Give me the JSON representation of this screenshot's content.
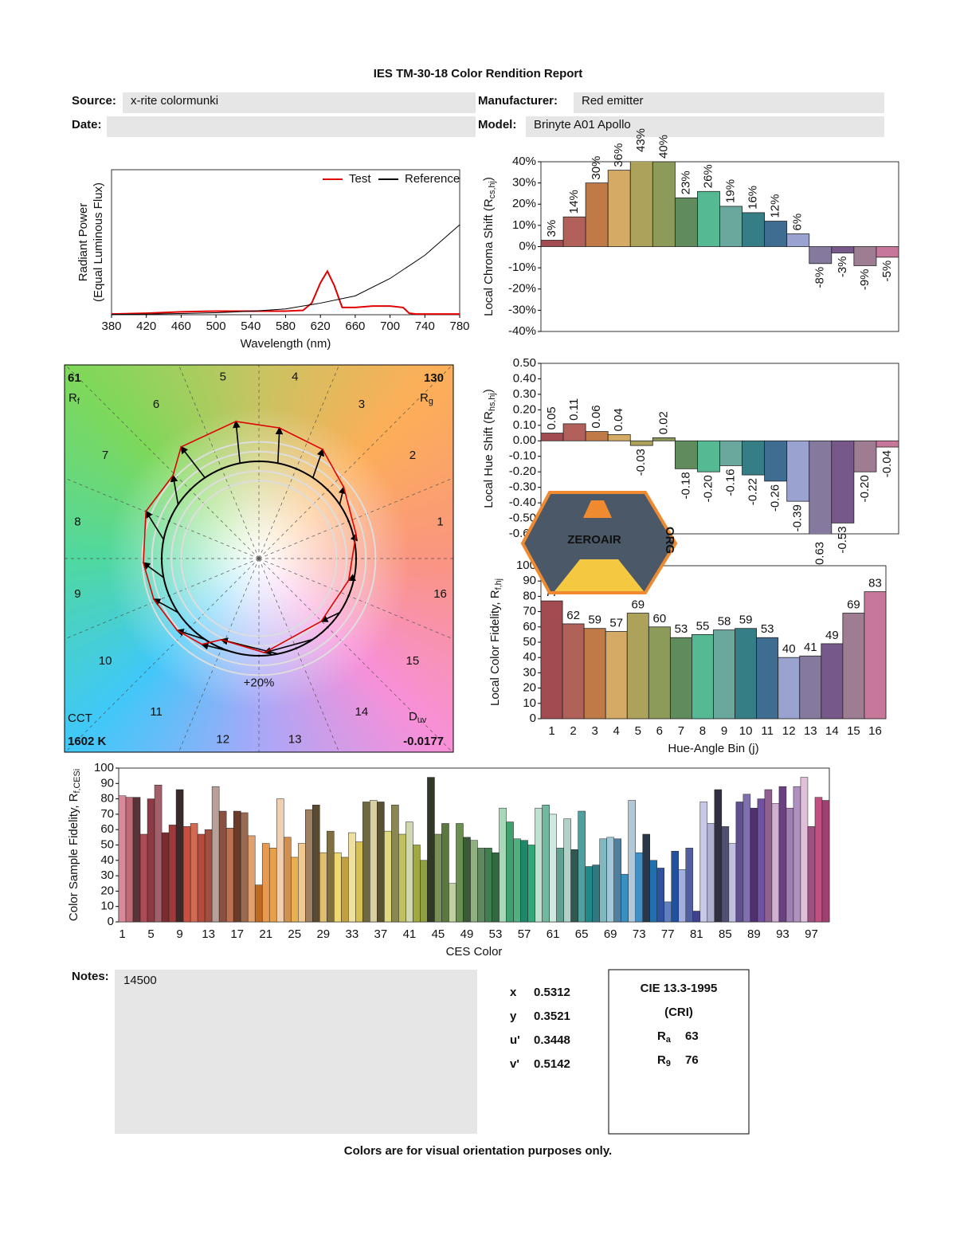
{
  "header": {
    "title": "IES TM-30-18 Color Rendition Report",
    "fields": [
      {
        "label": "Source:",
        "value": "x-rite colormunki"
      },
      {
        "label": "Manufacturer:",
        "value": "Red emitter"
      },
      {
        "label": "Date:"
      },
      {
        "label": "Model:",
        "value": "Brinyte A01 Apollo"
      }
    ]
  },
  "chart_data": [
    {
      "type": "line",
      "xlabel": "Wavelength (nm)",
      "ylabel": "Radiant Power",
      "ylabel_note": "(Equal Luminous Flux)",
      "xlim": [
        380,
        780
      ],
      "xticks": [
        380,
        420,
        460,
        500,
        540,
        580,
        620,
        660,
        700,
        740,
        780
      ],
      "ylim": [
        0,
        1
      ],
      "legend": "upper right",
      "series": [
        {
          "name": "Test",
          "color": "#e00000",
          "x": [
            380,
            420,
            460,
            500,
            540,
            580,
            600,
            610,
            620,
            628,
            636,
            645,
            660,
            680,
            700,
            715,
            722,
            730,
            780
          ],
          "values": [
            0.005,
            0.01,
            0.02,
            0.025,
            0.025,
            0.025,
            0.03,
            0.08,
            0.22,
            0.3,
            0.2,
            0.05,
            0.05,
            0.06,
            0.06,
            0.05,
            0.01,
            0.005,
            0.005
          ]
        },
        {
          "name": "Reference",
          "color": "#000000",
          "x": [
            380,
            420,
            460,
            500,
            540,
            580,
            620,
            660,
            700,
            740,
            780
          ],
          "values": [
            0.002,
            0.004,
            0.008,
            0.014,
            0.024,
            0.04,
            0.08,
            0.13,
            0.25,
            0.41,
            0.62
          ]
        }
      ]
    },
    {
      "type": "vector",
      "metrics": [
        {
          "value": 61,
          "label": "R",
          "sub": "f"
        },
        {
          "value": 130,
          "label": "R",
          "sub": "g"
        }
      ],
      "cct": {
        "label": "CCT",
        "value": 1602,
        "value_label": "1602 K"
      },
      "duv": {
        "label": "D",
        "sub": "uv",
        "value": -0.0177
      },
      "rings": [
        -20,
        -10,
        10,
        {
          "value": 20,
          "label": "+20%"
        }
      ]
    },
    {
      "type": "bar",
      "ylabel": {
        "text": "Local Chroma Shift (R",
        "sub": "cs,hj",
        "end": ")"
      },
      "ylim": [
        -40,
        40
      ],
      "yticks": [
        {
          "value": -40,
          "label": "-40%"
        },
        {
          "value": -30,
          "label": "-30%"
        },
        {
          "value": -20,
          "label": "-20%"
        },
        {
          "value": -10,
          "label": "-10%"
        },
        {
          "value": 0,
          "label": "0%"
        },
        {
          "value": 10,
          "label": "10%"
        },
        {
          "value": 20,
          "label": "20%"
        },
        {
          "value": 30,
          "label": "30%"
        },
        {
          "value": 40,
          "label": "40%"
        }
      ],
      "values": [
        3,
        14,
        30,
        36,
        43,
        40,
        23,
        26,
        19,
        16,
        12,
        6,
        -8,
        -3,
        -9,
        -5
      ],
      "value_labels": [
        "3%",
        "14%",
        "30%",
        "36%",
        "43%",
        "40%",
        "23%",
        "26%",
        "19%",
        "16%",
        "12%",
        "6%",
        "-8%",
        "-3%",
        "-9%",
        "-5%"
      ],
      "colors": [
        "#a24b50",
        "#b2615a",
        "#c07a47",
        "#d4aa65",
        "#ada25c",
        "#8c9a5a",
        "#5f8b5d",
        "#55b994",
        "#6aa89d",
        "#357e86",
        "#3f6d92",
        "#9aa3cf",
        "#857a9e",
        "#76588a",
        "#9e7d92",
        "#c7789a"
      ]
    },
    {
      "type": "bar",
      "ylabel": {
        "text": "Local Hue Shift (R",
        "sub": "hs,hj",
        "end": ")"
      },
      "ylim": [
        -0.6,
        0.5
      ],
      "yticks": [
        {
          "value": -0.6,
          "label": "-0.60"
        },
        {
          "value": -0.5,
          "label": "-0.50"
        },
        {
          "value": -0.4,
          "label": "-0.40"
        },
        {
          "value": -0.3,
          "label": "-0.30"
        },
        {
          "value": -0.2,
          "label": "-0.20"
        },
        {
          "value": -0.1,
          "label": "-0.10"
        },
        {
          "value": 0,
          "label": "0.00"
        },
        {
          "value": 0.1,
          "label": "0.10"
        },
        {
          "value": 0.2,
          "label": "0.20"
        },
        {
          "value": 0.3,
          "label": "0.30"
        },
        {
          "value": 0.4,
          "label": "0.40"
        },
        {
          "value": 0.5,
          "label": "0.50"
        }
      ],
      "values": [
        0.05,
        0.11,
        0.06,
        0.04,
        -0.03,
        0.02,
        -0.18,
        -0.2,
        -0.16,
        -0.22,
        -0.26,
        -0.39,
        -0.63,
        -0.53,
        -0.2,
        -0.04
      ],
      "value_labels": [
        "0.05",
        "0.11",
        "0.06",
        "0.04",
        "-0.03",
        "0.02",
        "-0.18",
        "-0.20",
        "-0.16",
        "-0.22",
        "-0.26",
        "-0.39",
        "-0.63",
        "-0.53",
        "-0.20",
        "-0.04"
      ],
      "colors": [
        "#a24b50",
        "#b2615a",
        "#c07a47",
        "#d4aa65",
        "#ada25c",
        "#8c9a5a",
        "#5f8b5d",
        "#55b994",
        "#6aa89d",
        "#357e86",
        "#3f6d92",
        "#9aa3cf",
        "#857a9e",
        "#76588a",
        "#9e7d92",
        "#c7789a"
      ],
      "watermark": {
        "text": "ZEROAIR",
        "suffix": "ORG"
      }
    },
    {
      "type": "bar",
      "xlabel": "Hue-Angle Bin (j)",
      "ylabel": {
        "text": "Local Color Fidelity, R",
        "sub": "f,hj"
      },
      "categories": [
        "1",
        "2",
        "3",
        "4",
        "5",
        "6",
        "7",
        "8",
        "9",
        "10",
        "11",
        "12",
        "13",
        "14",
        "15",
        "16"
      ],
      "ylim": [
        0,
        100
      ],
      "yticks": [
        0,
        10,
        20,
        30,
        40,
        50,
        60,
        70,
        80,
        90,
        100
      ],
      "values": [
        77,
        62,
        59,
        57,
        69,
        60,
        53,
        55,
        58,
        59,
        53,
        40,
        41,
        49,
        69,
        83
      ],
      "colors": [
        "#a24b50",
        "#b2615a",
        "#c07a47",
        "#d4aa65",
        "#ada25c",
        "#8c9a5a",
        "#5f8b5d",
        "#55b994",
        "#6aa89d",
        "#357e86",
        "#3f6d92",
        "#9aa3cf",
        "#857a9e",
        "#76588a",
        "#9e7d92",
        "#c7789a"
      ]
    },
    {
      "type": "bar",
      "xlabel": "CES Color",
      "ylabel": {
        "text": "Color Sample Fidelity, R",
        "sub": "f,CESi"
      },
      "categories": [
        "1",
        null,
        null,
        null,
        "5",
        null,
        null,
        null,
        "9",
        null,
        null,
        null,
        "13",
        null,
        null,
        null,
        "17",
        null,
        null,
        null,
        "21",
        null,
        null,
        null,
        "25",
        null,
        null,
        null,
        "29",
        null,
        null,
        null,
        "33",
        null,
        null,
        null,
        "37",
        null,
        null,
        null,
        "41",
        null,
        null,
        null,
        "45",
        null,
        null,
        null,
        "49",
        null,
        null,
        null,
        "53",
        null,
        null,
        null,
        "57",
        null,
        null,
        null,
        "61",
        null,
        null,
        null,
        "65",
        null,
        null,
        null,
        "69",
        null,
        null,
        null,
        "73",
        null,
        null,
        null,
        "77",
        null,
        null,
        null,
        "81",
        null,
        null,
        null,
        "85",
        null,
        null,
        null,
        "89",
        null,
        null,
        null,
        "93",
        null,
        null,
        null,
        "97",
        null,
        null
      ],
      "ylim": [
        0,
        100
      ],
      "yticks": [
        0,
        10,
        20,
        30,
        40,
        50,
        60,
        70,
        80,
        90,
        100
      ],
      "values": [
        82,
        81,
        81,
        57,
        80,
        89,
        58,
        63,
        86,
        62,
        64,
        57,
        60,
        88,
        72,
        61,
        72,
        71,
        56,
        24,
        51,
        48,
        80,
        55,
        42,
        51,
        73,
        76,
        45,
        59,
        45,
        42,
        58,
        52,
        78,
        79,
        78,
        59,
        76,
        57,
        65,
        50,
        40,
        94,
        57,
        64,
        25,
        64,
        55,
        53,
        48,
        48,
        45,
        74,
        65,
        54,
        53,
        50,
        74,
        76,
        70,
        48,
        67,
        47,
        72,
        36,
        37,
        54,
        55,
        54,
        31,
        79,
        45,
        57,
        40,
        35,
        13,
        46,
        34,
        48,
        7,
        78,
        64,
        86,
        62,
        51,
        78,
        83,
        74,
        80,
        86,
        77,
        88,
        74,
        88,
        94,
        62,
        81,
        79
      ],
      "colors": [
        "#d98a9a",
        "#c06a78",
        "#5a3338",
        "#b04a55",
        "#8c3a44",
        "#a4606a",
        "#7a2c30",
        "#a03a3a",
        "#3a2a2a",
        "#c85040",
        "#d06a50",
        "#b84a3a",
        "#a05040",
        "#b8a098",
        "#8a5040",
        "#c07050",
        "#6a3a2a",
        "#9a6a50",
        "#e0a070",
        "#c06a20",
        "#e89a50",
        "#e8a048",
        "#f0d0b0",
        "#d09050",
        "#e8b050",
        "#f0c890",
        "#a08060",
        "#5a4a30",
        "#e0c070",
        "#807040",
        "#f0d870",
        "#c0a040",
        "#f0e0a0",
        "#d8c050",
        "#706840",
        "#d8d0a0",
        "#585030",
        "#e0d880",
        "#8a8850",
        "#c0c060",
        "#d0d8b0",
        "#a0a840",
        "#90a040",
        "#303828",
        "#7a9058",
        "#5a7840",
        "#c0d0a0",
        "#6a9050",
        "#3a5a38",
        "#90b080",
        "#608860",
        "#408050",
        "#306840",
        "#a8d8b8",
        "#40a070",
        "#50b080",
        "#20886a",
        "#30a878",
        "#c0e0d0",
        "#70b8a0",
        "#d0e8e0",
        "#60a090",
        "#b0d0c8",
        "#305850",
        "#50a0a0",
        "#208888",
        "#307880",
        "#80b8c0",
        "#a0c8d8",
        "#5080a0",
        "#3890c0",
        "#b0c8d8",
        "#4090c8",
        "#283848",
        "#2070b0",
        "#3050a0",
        "#6080c0",
        "#2050a0",
        "#a0b0e0",
        "#5060a0",
        "#404090",
        "#c8c8e8",
        "#b0b0d0",
        "#303040",
        "#505070",
        "#c0c0e0",
        "#605090",
        "#8070b0",
        "#503070",
        "#7050a0",
        "#906090",
        "#d0b0d0",
        "#6a4080",
        "#a080b0",
        "#b090c0",
        "#e0c0d8",
        "#a05080",
        "#c05080",
        "#a04070"
      ]
    }
  ],
  "notes": {
    "label": "Notes:",
    "text": "14500"
  },
  "chromaticity": [
    {
      "label": "x",
      "value": 0.5312
    },
    {
      "label": "y",
      "value": 0.3521
    },
    {
      "label": "u'",
      "value": 0.3448
    },
    {
      "label": "v'",
      "value": 0.5142
    }
  ],
  "cri": {
    "title": "CIE 13.3-1995",
    "subtitle": "(CRI)",
    "items": [
      {
        "label": "R",
        "sub": "a",
        "value": 63
      },
      {
        "label": "R",
        "sub": "9",
        "value": 76
      }
    ]
  },
  "footer": "Colors are for visual orientation purposes only."
}
